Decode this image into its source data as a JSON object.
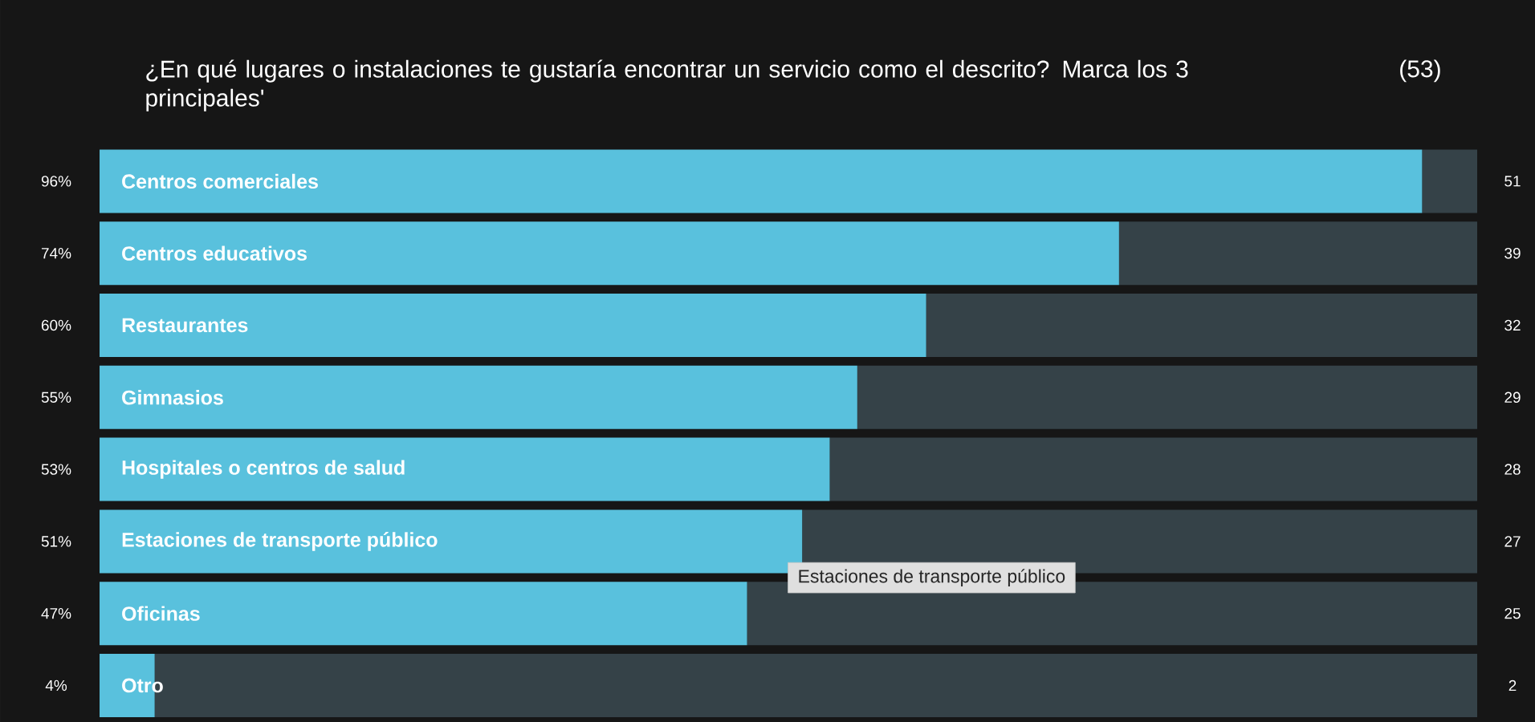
{
  "chart_data": {
    "type": "bar",
    "orientation": "horizontal",
    "stacked": true,
    "title": "¿En qué lugares o instalaciones te gustaría encontrar un servicio como el descrito? Marca los 3 principales'",
    "categories": [
      "Centros comerciales",
      "Centros educativos",
      "Restaurantes",
      "Gimnasios",
      "Hospitales o centros de salud",
      "Estaciones de transporte público",
      "Oficinas",
      "Otro"
    ],
    "xlim": [
      0,
      100
    ],
    "series": [
      {
        "color": "#59c1dd",
        "values": [
          96,
          74,
          60,
          55,
          53,
          51,
          47,
          4
        ],
        "value_labels": [
          "96%",
          "74%",
          "60%",
          "55%",
          "53%",
          "51%",
          "47%",
          "4%"
        ]
      },
      {
        "color": "#354248",
        "values": [
          4,
          26,
          40,
          45,
          47,
          49,
          53,
          96
        ]
      }
    ],
    "annotations": [
      "(53)",
      "51",
      "39",
      "32",
      "29",
      "28",
      "27",
      "25",
      "2",
      {
        "text": "Estaciones de transporte público",
        "x": 51,
        "y": "Estaciones de transporte público"
      }
    ]
  }
}
